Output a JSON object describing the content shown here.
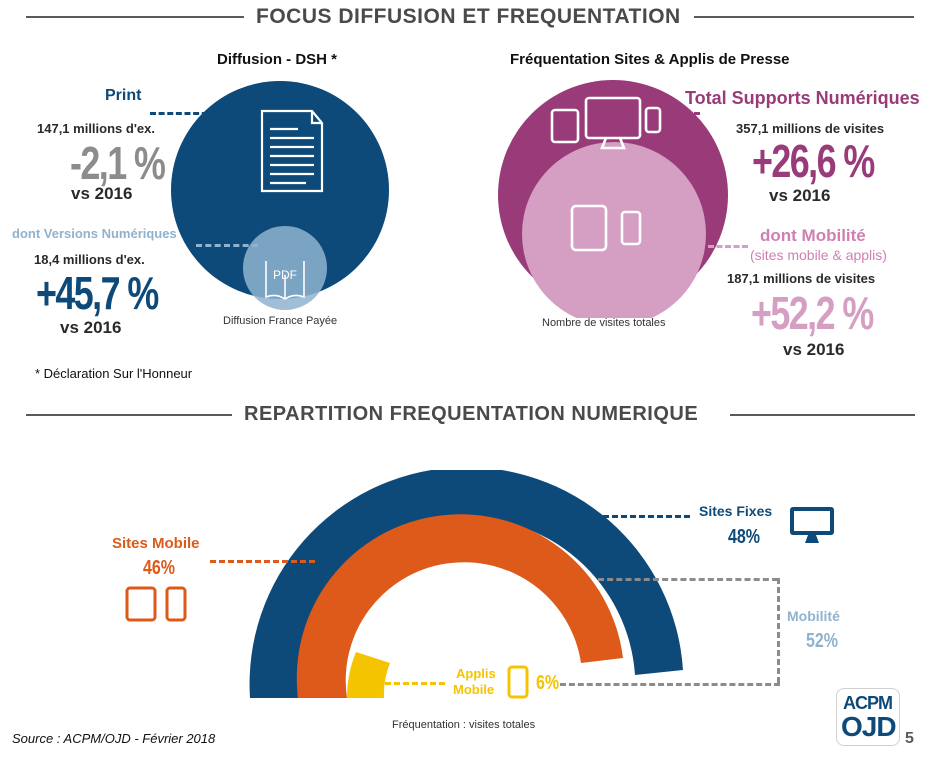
{
  "top_banner": {
    "title": "FOCUS DIFFUSION ET FREQUENTATION"
  },
  "diffusion": {
    "title": "Diffusion - DSH *",
    "print": {
      "label": "Print",
      "volume": "147,1 millions d'ex.",
      "change": "-2,1 %",
      "vs": "vs 2016"
    },
    "numeric": {
      "label": "dont Versions Numériques",
      "volume": "18,4 millions d'ex.",
      "change": "+45,7 %",
      "vs": "vs 2016"
    },
    "pdf_label": "PDF",
    "caption": "Diffusion France Payée",
    "footnote": "* Déclaration Sur l'Honneur"
  },
  "frequentation": {
    "title": "Fréquentation Sites & Applis de Presse",
    "total": {
      "label": "Total Supports Numériques",
      "volume": "357,1 millions de visites",
      "change": "+26,6 %",
      "vs": "vs 2016"
    },
    "mobile": {
      "label": "dont Mobilité",
      "sublabel": "(sites mobile & applis)",
      "volume": "187,1 millions de visites",
      "change": "+52,2 %",
      "vs": "vs 2016"
    },
    "caption": "Nombre de visites totales"
  },
  "bottom_banner": {
    "title": "REPARTITION FREQUENTATION NUMERIQUE"
  },
  "repartition": {
    "sites_fixes": {
      "label": "Sites Fixes",
      "pct": "48%",
      "value": 48
    },
    "sites_mobile": {
      "label": "Sites Mobile",
      "pct": "46%",
      "value": 46
    },
    "applis": {
      "label_line1": "Applis",
      "label_line2": "Mobile",
      "pct": "6%",
      "value": 6
    },
    "mobilite": {
      "label": "Mobilité",
      "pct": "52%",
      "value": 52
    },
    "caption": "Fréquentation : visites totales"
  },
  "footer": {
    "source": "Source : ACPM/OJD - Février 2018",
    "logo_top": "ACPM",
    "logo_bottom": "OJD",
    "page": "5"
  },
  "colors": {
    "navy": "#0d4a7a",
    "purple": "#9a3b79",
    "pink": "#d59ec3",
    "orange": "#dd5a1a",
    "yellow": "#f5c400",
    "gray": "#8c8c8c",
    "light_blue": "#8fb3cf"
  }
}
